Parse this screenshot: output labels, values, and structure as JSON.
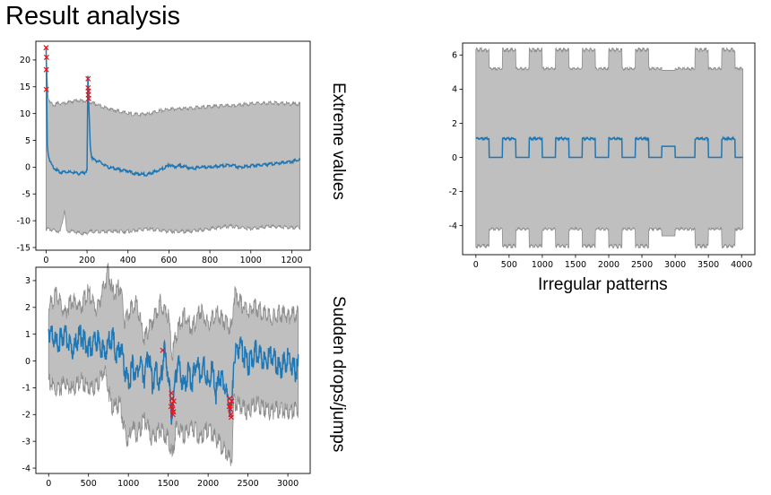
{
  "title": "Result analysis",
  "colors": {
    "band": "#bfbfbf",
    "band_edge": "#8c8c8c",
    "line": "#1f77b4",
    "marker": "#e8131a",
    "axis": "#000000"
  },
  "chart_data": [
    {
      "id": "extreme",
      "type": "line",
      "title": "Extreme values",
      "xlim": [
        -50,
        1290
      ],
      "ylim": [
        -15.5,
        23.5
      ],
      "xticks": [
        0,
        200,
        400,
        600,
        800,
        1000,
        1200
      ],
      "yticks": [
        -15,
        -10,
        -5,
        0,
        5,
        10,
        15,
        20
      ],
      "series": [
        {
          "name": "signal",
          "points": [
            [
              0,
              22.5
            ],
            [
              3,
              14
            ],
            [
              6,
              4
            ],
            [
              10,
              2.5
            ],
            [
              20,
              1
            ],
            [
              35,
              0
            ],
            [
              50,
              -0.5
            ],
            [
              70,
              -1
            ],
            [
              90,
              -0.8
            ],
            [
              100,
              -0.9
            ],
            [
              130,
              -1
            ],
            [
              160,
              -1.2
            ],
            [
              190,
              -1
            ],
            [
              200,
              -0.5
            ],
            [
              204,
              17
            ],
            [
              208,
              12
            ],
            [
              212,
              8
            ],
            [
              216,
              4
            ],
            [
              222,
              2
            ],
            [
              230,
              1.5
            ],
            [
              240,
              1.3
            ],
            [
              260,
              1
            ],
            [
              280,
              0.5
            ],
            [
              300,
              0
            ],
            [
              330,
              -0.2
            ],
            [
              360,
              -0.5
            ],
            [
              400,
              -0.7
            ],
            [
              430,
              -1.2
            ],
            [
              460,
              -1.3
            ],
            [
              490,
              -1.4
            ],
            [
              520,
              -1
            ],
            [
              550,
              -0.6
            ],
            [
              580,
              -0.1
            ],
            [
              605,
              0.5
            ],
            [
              625,
              0
            ],
            [
              650,
              0.3
            ],
            [
              680,
              0.1
            ],
            [
              710,
              -0.3
            ],
            [
              750,
              0
            ],
            [
              800,
              0
            ],
            [
              850,
              0.2
            ],
            [
              900,
              0.4
            ],
            [
              950,
              0
            ],
            [
              1000,
              0.3
            ],
            [
              1050,
              0.4
            ],
            [
              1100,
              0.6
            ],
            [
              1150,
              0.8
            ],
            [
              1200,
              1.1
            ],
            [
              1240,
              1.4
            ]
          ]
        },
        {
          "name": "band_upper",
          "points": [
            [
              0,
              22
            ],
            [
              10,
              13
            ],
            [
              20,
              12
            ],
            [
              40,
              11.5
            ],
            [
              60,
              12
            ],
            [
              80,
              11.8
            ],
            [
              100,
              12
            ],
            [
              150,
              12.5
            ],
            [
              200,
              12.3
            ],
            [
              300,
              11
            ],
            [
              400,
              10
            ],
            [
              450,
              9.8
            ],
            [
              500,
              10
            ],
            [
              550,
              10.5
            ],
            [
              600,
              10.8
            ],
            [
              700,
              11
            ],
            [
              800,
              11.3
            ],
            [
              900,
              11.5
            ],
            [
              1000,
              11.8
            ],
            [
              1100,
              12
            ],
            [
              1200,
              11.8
            ],
            [
              1240,
              11.8
            ]
          ]
        },
        {
          "name": "band_lower",
          "points": [
            [
              0,
              -11.5
            ],
            [
              40,
              -11.8
            ],
            [
              70,
              -12
            ],
            [
              90,
              -8
            ],
            [
              100,
              -12
            ],
            [
              130,
              -12
            ],
            [
              180,
              -12.5
            ],
            [
              220,
              -12
            ],
            [
              300,
              -12
            ],
            [
              400,
              -12
            ],
            [
              500,
              -11.5
            ],
            [
              600,
              -12
            ],
            [
              700,
              -12
            ],
            [
              800,
              -11.5
            ],
            [
              900,
              -11
            ],
            [
              1000,
              -11.5
            ],
            [
              1100,
              -11
            ],
            [
              1200,
              -11.3
            ],
            [
              1240,
              -11.3
            ]
          ]
        }
      ],
      "anomalies": [
        [
          0,
          22.3
        ],
        [
          2,
          20.5
        ],
        [
          1,
          18.2
        ],
        [
          1,
          14.5
        ],
        [
          205,
          16.5
        ],
        [
          205,
          14.8
        ],
        [
          207,
          14.2
        ],
        [
          206,
          13.5
        ],
        [
          208,
          12.8
        ]
      ]
    },
    {
      "id": "irregular",
      "type": "line",
      "title": "Irregular patterns",
      "xlim": [
        -200,
        4200
      ],
      "ylim": [
        -5.7,
        6.7
      ],
      "xticks": [
        0,
        500,
        1000,
        1500,
        2000,
        2500,
        3000,
        3500,
        4000
      ],
      "yticks": [
        -4,
        -2,
        0,
        2,
        4,
        6
      ],
      "series": [
        {
          "name": "signal",
          "cycles_start": [
            0,
            400,
            800,
            1200,
            1600,
            2000,
            2400,
            3300,
            3700
          ],
          "pulse_width": 200,
          "pulse_high": 1.1,
          "pulse_low": 0,
          "flat_segment": [
            2800,
            3000,
            0.65
          ],
          "x_end": 4020
        },
        {
          "name": "band",
          "upper_high": 6.3,
          "upper_low": 5.2,
          "lower_high": -4.2,
          "lower_low": -5.2
        }
      ],
      "anomalies": []
    },
    {
      "id": "sudden",
      "type": "line",
      "title": "Sudden drops/jumps",
      "xlim": [
        -160,
        3280
      ],
      "ylim": [
        -4.2,
        3.5
      ],
      "xticks": [
        0,
        500,
        1000,
        1500,
        2000,
        2500,
        3000
      ],
      "yticks": [
        -4,
        -3,
        -2,
        -1,
        0,
        1,
        2,
        3
      ],
      "series": [
        {
          "name": "signal",
          "points": [
            [
              0,
              1.2
            ],
            [
              100,
              0.6
            ],
            [
              200,
              1
            ],
            [
              300,
              0.4
            ],
            [
              400,
              1
            ],
            [
              500,
              0.5
            ],
            [
              600,
              0.8
            ],
            [
              700,
              0.3
            ],
            [
              800,
              1
            ],
            [
              850,
              0.2
            ],
            [
              900,
              0.6
            ],
            [
              950,
              -0.3
            ],
            [
              1000,
              -0.9
            ],
            [
              1050,
              -0.2
            ],
            [
              1100,
              -0.5
            ],
            [
              1150,
              0
            ],
            [
              1200,
              -0.6
            ],
            [
              1250,
              0.3
            ],
            [
              1300,
              -0.8
            ],
            [
              1350,
              -0.3
            ],
            [
              1400,
              -0.9
            ],
            [
              1450,
              0.4
            ],
            [
              1500,
              -0.5
            ],
            [
              1540,
              -2
            ],
            [
              1580,
              -1
            ],
            [
              1620,
              0
            ],
            [
              1650,
              -0.5
            ],
            [
              1700,
              -1
            ],
            [
              1750,
              -0.4
            ],
            [
              1800,
              -0.8
            ],
            [
              1850,
              0
            ],
            [
              1900,
              -0.5
            ],
            [
              1950,
              -0.2
            ],
            [
              2000,
              -0.9
            ],
            [
              2050,
              -0.3
            ],
            [
              2100,
              -1.2
            ],
            [
              2150,
              -0.5
            ],
            [
              2200,
              -0.8
            ],
            [
              2250,
              -1.5
            ],
            [
              2300,
              -1.8
            ],
            [
              2320,
              0.2
            ],
            [
              2400,
              0.6
            ],
            [
              2500,
              -0.2
            ],
            [
              2600,
              0.4
            ],
            [
              2700,
              0
            ],
            [
              2800,
              0.2
            ],
            [
              2900,
              -0.3
            ],
            [
              3000,
              0.1
            ],
            [
              3100,
              -0.4
            ],
            [
              3130,
              -0.2
            ]
          ]
        },
        {
          "name": "band_upper",
          "points": [
            [
              0,
              2
            ],
            [
              100,
              2.5
            ],
            [
              200,
              1.8
            ],
            [
              300,
              2.3
            ],
            [
              400,
              2
            ],
            [
              500,
              2.6
            ],
            [
              600,
              1.9
            ],
            [
              700,
              2.8
            ],
            [
              750,
              3.4
            ],
            [
              800,
              2.5
            ],
            [
              900,
              2.8
            ],
            [
              950,
              1.5
            ],
            [
              1000,
              1.8
            ],
            [
              1100,
              2.2
            ],
            [
              1200,
              0.8
            ],
            [
              1300,
              1.5
            ],
            [
              1400,
              2.2
            ],
            [
              1500,
              1.7
            ],
            [
              1550,
              0.2
            ],
            [
              1600,
              1
            ],
            [
              1700,
              1.7
            ],
            [
              1800,
              1.2
            ],
            [
              1900,
              1.9
            ],
            [
              2000,
              1.4
            ],
            [
              2100,
              1.8
            ],
            [
              2200,
              1.5
            ],
            [
              2300,
              1.2
            ],
            [
              2320,
              2.5
            ],
            [
              2400,
              2.2
            ],
            [
              2500,
              1.9
            ],
            [
              2600,
              2
            ],
            [
              2700,
              1.8
            ],
            [
              2800,
              1.6
            ],
            [
              2900,
              1.8
            ],
            [
              3000,
              1.7
            ],
            [
              3130,
              1.8
            ]
          ]
        },
        {
          "name": "band_lower",
          "points": [
            [
              0,
              -0.7
            ],
            [
              100,
              -1.2
            ],
            [
              200,
              -0.8
            ],
            [
              300,
              -1.1
            ],
            [
              400,
              -0.7
            ],
            [
              500,
              -1
            ],
            [
              600,
              -1
            ],
            [
              700,
              -0.3
            ],
            [
              800,
              -1.8
            ],
            [
              900,
              -1.6
            ],
            [
              950,
              -2.6
            ],
            [
              1000,
              -3.1
            ],
            [
              1050,
              -2.4
            ],
            [
              1100,
              -2.8
            ],
            [
              1200,
              -2.2
            ],
            [
              1300,
              -2.9
            ],
            [
              1400,
              -2.5
            ],
            [
              1500,
              -2.9
            ],
            [
              1550,
              -3.6
            ],
            [
              1600,
              -2.5
            ],
            [
              1700,
              -2.8
            ],
            [
              1800,
              -2.4
            ],
            [
              1900,
              -2.9
            ],
            [
              2000,
              -2.5
            ],
            [
              2100,
              -2.9
            ],
            [
              2200,
              -3.3
            ],
            [
              2250,
              -3.6
            ],
            [
              2300,
              -3.7
            ],
            [
              2320,
              -1.5
            ],
            [
              2400,
              -1.7
            ],
            [
              2500,
              -1.9
            ],
            [
              2600,
              -1.6
            ],
            [
              2700,
              -1.8
            ],
            [
              2800,
              -1.9
            ],
            [
              2900,
              -1.8
            ],
            [
              3000,
              -1.9
            ],
            [
              3130,
              -1.8
            ]
          ]
        }
      ],
      "anomalies": [
        [
          1430,
          0.4
        ],
        [
          1540,
          -1.2
        ],
        [
          1545,
          -1.4
        ],
        [
          1550,
          -1.6
        ],
        [
          1555,
          -1.8
        ],
        [
          1560,
          -2
        ],
        [
          1565,
          -1.9
        ],
        [
          1535,
          -1.7
        ],
        [
          1570,
          -1.5
        ],
        [
          2270,
          -1.4
        ],
        [
          2275,
          -1.6
        ],
        [
          2280,
          -1.8
        ],
        [
          2285,
          -2
        ],
        [
          2290,
          -2.1
        ],
        [
          2295,
          -1.5
        ],
        [
          2265,
          -1.7
        ]
      ]
    }
  ]
}
